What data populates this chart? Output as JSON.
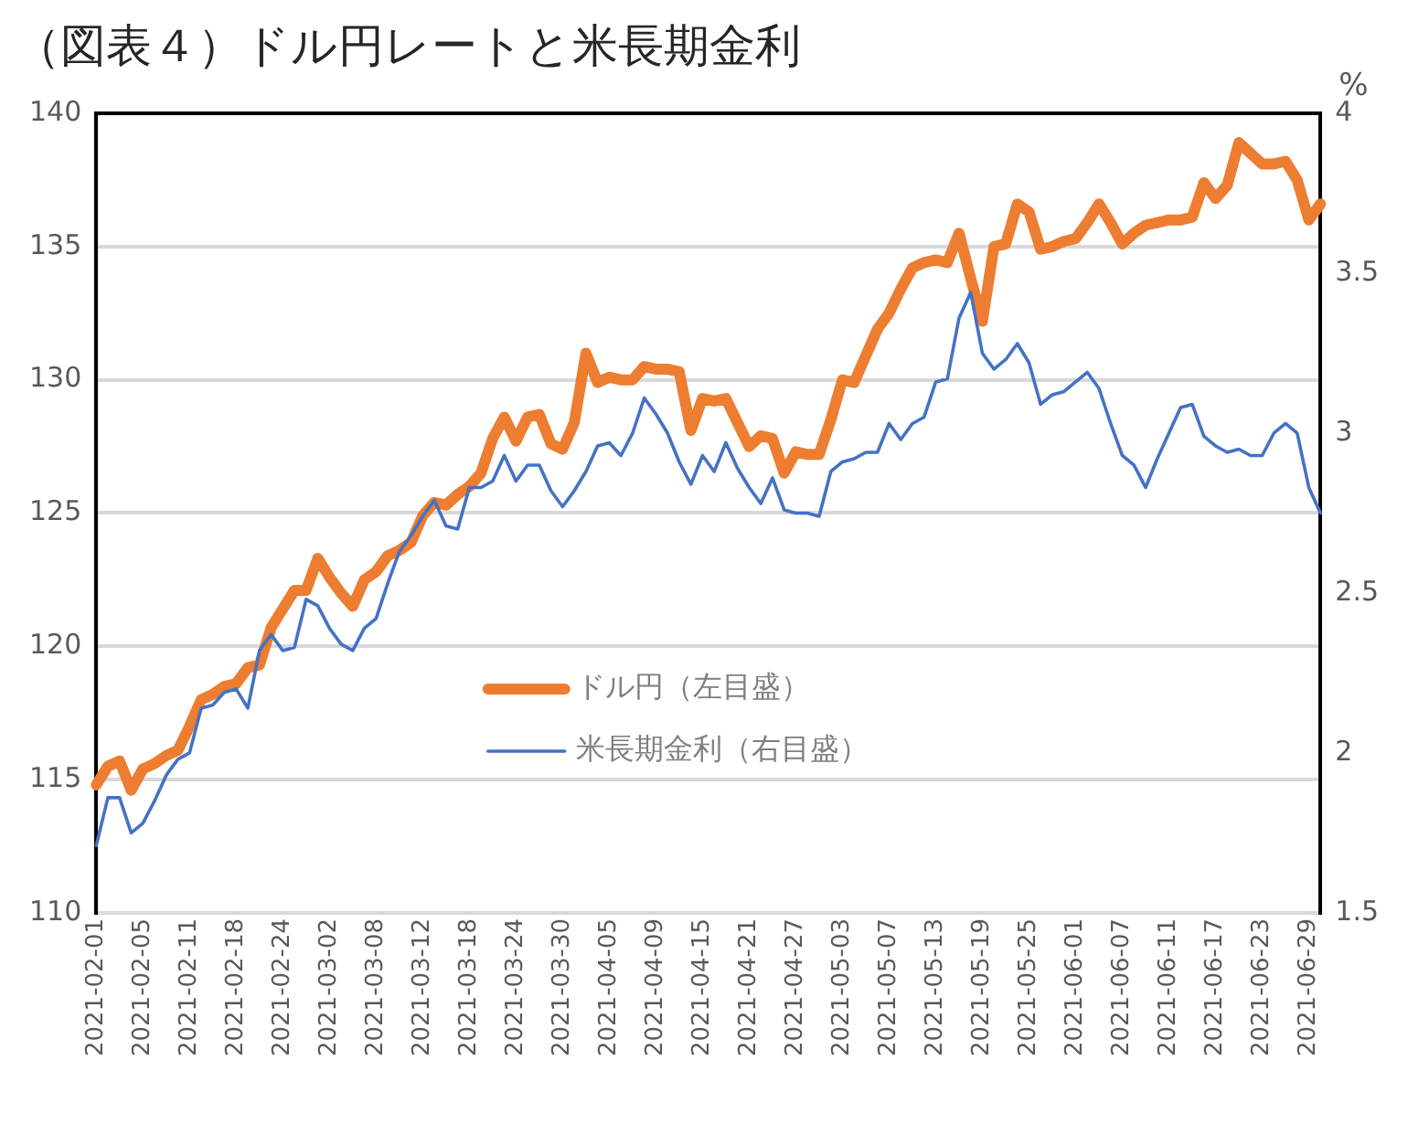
{
  "chart_data": {
    "type": "line",
    "title": "（図表４）ドル円レートと米長期金利",
    "y2label": "%",
    "categories": [
      "2021-02-01",
      null,
      null,
      null,
      "2021-02-05",
      null,
      null,
      null,
      "2021-02-11",
      null,
      null,
      null,
      "2021-02-18",
      null,
      null,
      null,
      "2021-02-24",
      null,
      null,
      null,
      "2021-03-02",
      null,
      null,
      null,
      "2021-03-08",
      null,
      null,
      null,
      "2021-03-12",
      null,
      null,
      null,
      "2021-03-18",
      null,
      null,
      null,
      "2021-03-24",
      null,
      null,
      null,
      "2021-03-30",
      null,
      null,
      null,
      "2021-04-05",
      null,
      null,
      null,
      "2021-04-09",
      null,
      null,
      null,
      "2021-04-15",
      null,
      null,
      null,
      "2021-04-21",
      null,
      null,
      null,
      "2021-04-27",
      null,
      null,
      null,
      "2021-05-03",
      null,
      null,
      null,
      "2021-05-07",
      null,
      null,
      null,
      "2021-05-13",
      null,
      null,
      null,
      "2021-05-19",
      null,
      null,
      null,
      "2021-05-25",
      null,
      null,
      null,
      "2021-06-01",
      null,
      null,
      null,
      "2021-06-07",
      null,
      null,
      null,
      "2021-06-11",
      null,
      null,
      null,
      "2021-06-17",
      null,
      null,
      null,
      "2021-06-23",
      null,
      null,
      null,
      "2021-06-29",
      null
    ],
    "series": [
      {
        "name": "ドル円（左目盛）",
        "color": "#ed7d31",
        "axis": "y",
        "values": [
          114.8,
          115.5,
          115.7,
          114.6,
          115.4,
          115.6,
          115.9,
          116.1,
          117.0,
          118.0,
          118.2,
          118.5,
          118.6,
          119.2,
          119.3,
          120.7,
          121.4,
          122.1,
          122.1,
          123.3,
          122.6,
          122.0,
          121.5,
          122.5,
          122.8,
          123.4,
          123.6,
          123.9,
          124.9,
          125.4,
          125.3,
          125.7,
          126.0,
          126.5,
          127.8,
          128.6,
          127.7,
          128.6,
          128.7,
          127.6,
          127.4,
          128.4,
          131.0,
          129.9,
          130.1,
          130.0,
          130.0,
          130.5,
          130.4,
          130.4,
          130.3,
          128.1,
          129.3,
          129.2,
          129.3,
          128.4,
          127.5,
          127.9,
          127.8,
          126.5,
          127.3,
          127.2,
          127.2,
          128.5,
          130.0,
          129.9,
          130.9,
          131.9,
          132.5,
          133.4,
          134.2,
          134.4,
          134.5,
          134.4,
          135.5,
          133.8,
          132.2,
          135.0,
          135.1,
          136.6,
          136.3,
          134.9,
          135.0,
          135.2,
          135.3,
          135.9,
          136.6,
          135.9,
          135.1,
          135.5,
          135.8,
          135.9,
          136.0,
          136.0,
          136.1,
          137.4,
          136.8,
          137.3,
          138.9,
          138.5,
          138.1,
          138.1,
          138.2,
          137.5,
          136.0,
          136.6
        ]
      },
      {
        "name": "米長期金利（右目盛）",
        "color": "#4472c4",
        "axis": "y2",
        "values": [
          1.71,
          1.86,
          1.86,
          1.75,
          1.78,
          1.85,
          1.93,
          1.98,
          2.0,
          2.14,
          2.15,
          2.19,
          2.2,
          2.14,
          2.32,
          2.37,
          2.32,
          2.33,
          2.48,
          2.46,
          2.39,
          2.34,
          2.32,
          2.39,
          2.42,
          2.53,
          2.63,
          2.68,
          2.74,
          2.79,
          2.71,
          2.7,
          2.83,
          2.83,
          2.85,
          2.93,
          2.85,
          2.9,
          2.9,
          2.82,
          2.77,
          2.82,
          2.88,
          2.96,
          2.97,
          2.93,
          3.0,
          3.11,
          3.06,
          3.0,
          2.91,
          2.84,
          2.93,
          2.88,
          2.97,
          2.89,
          2.83,
          2.78,
          2.86,
          2.76,
          2.75,
          2.75,
          2.74,
          2.88,
          2.91,
          2.92,
          2.94,
          2.94,
          3.03,
          2.98,
          3.03,
          3.05,
          3.16,
          3.17,
          3.36,
          3.44,
          3.25,
          3.2,
          3.23,
          3.28,
          3.22,
          3.09,
          3.12,
          3.13,
          3.16,
          3.19,
          3.14,
          3.03,
          2.93,
          2.9,
          2.83,
          2.92,
          3.0,
          3.08,
          3.09,
          2.99,
          2.96,
          2.94,
          2.95,
          2.93,
          2.93,
          3.0,
          3.03,
          3.0,
          2.83,
          2.75
        ]
      }
    ],
    "ylim": [
      110,
      140
    ],
    "yticks": [
      110,
      115,
      120,
      125,
      130,
      135,
      140
    ],
    "y2lim": [
      1.5,
      4
    ],
    "y2ticks": [
      {
        "value": 1.5,
        "label": "1.5"
      },
      {
        "value": 2,
        "label": "2"
      },
      {
        "value": 2.5,
        "label": "2.5"
      },
      {
        "value": 3,
        "label": "3"
      },
      {
        "value": 3.5,
        "label": "3.5"
      },
      {
        "value": 4,
        "label": "4"
      }
    ],
    "grid": "y",
    "legend": "bottom",
    "marker": "none",
    "line_style": "solid"
  }
}
